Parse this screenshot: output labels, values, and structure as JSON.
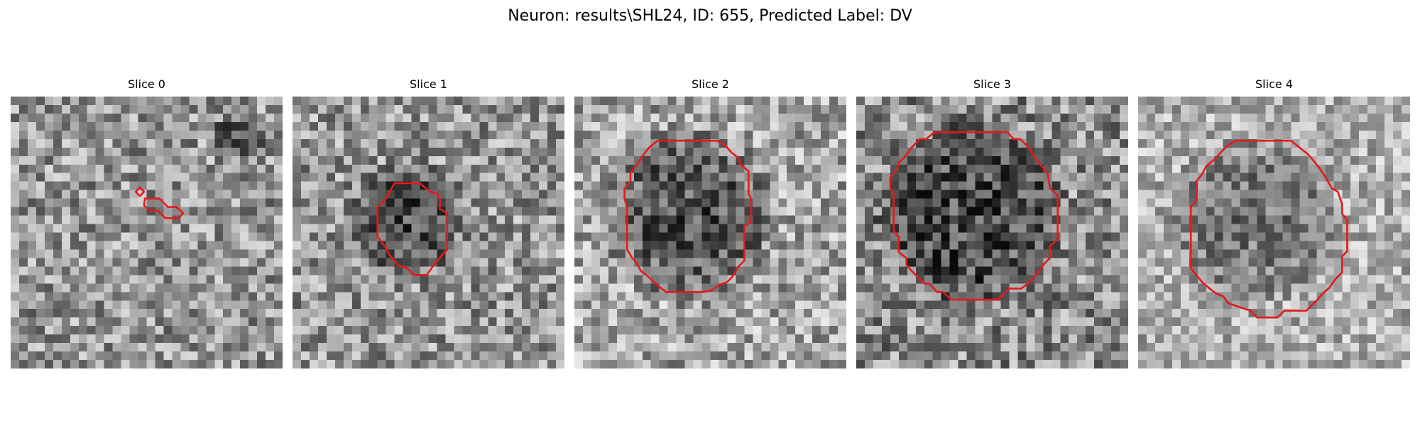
{
  "figure": {
    "title": "Neuron: results\\SHL24, ID: 655, Predicted Label: DV"
  },
  "image": {
    "grid_size": 32,
    "colormap": "gray",
    "contour_color": "#e41a1c"
  },
  "panels": [
    {
      "title": "Slice 0",
      "contour": [],
      "noise_seed": 11
    },
    {
      "title": "Slice 1",
      "noise_seed": 23
    },
    {
      "title": "Slice 2",
      "noise_seed": 37
    },
    {
      "title": "Slice 3",
      "noise_seed": 41
    },
    {
      "title": "Slice 4",
      "noise_seed": 53
    }
  ]
}
